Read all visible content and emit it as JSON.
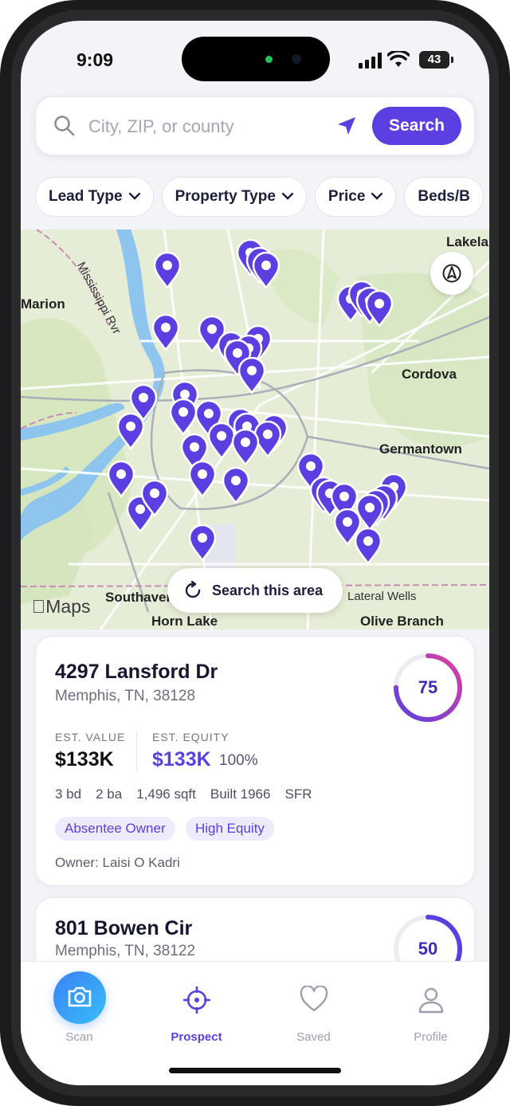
{
  "status_bar": {
    "time": "9:09",
    "battery": "43"
  },
  "search": {
    "placeholder": "City, ZIP, or county",
    "value": "",
    "button_label": "Search"
  },
  "filters": [
    "Lead Type",
    "Property Type",
    "Price",
    "Beds/B"
  ],
  "map": {
    "labels": {
      "lakeland": "Lakela",
      "marion": "Marion",
      "river": "Mississippi Rvr",
      "cordova": "Cordova",
      "germantown": "Germantown",
      "southaven": "Southaven",
      "horn_lake": "Horn Lake",
      "collierville": "Lateral Wells",
      "olive_branch": "Olive Branch"
    },
    "attribution": "Maps",
    "search_area_label": "Search this area",
    "pin_color": "#5b3fe0"
  },
  "properties": [
    {
      "address": "4297 Lansford Dr",
      "city": "Memphis, TN, 38128",
      "score": 75,
      "est_value_label": "EST. VALUE",
      "est_value": "$133K",
      "est_equity_label": "EST. EQUITY",
      "est_equity": "$133K",
      "equity_pct": "100%",
      "specs": [
        "3 bd",
        "2 ba",
        "1,496 sqft",
        "Built 1966",
        "SFR"
      ],
      "tags": [
        "Absentee Owner",
        "High Equity"
      ],
      "owner": "Owner: Laisi O Kadri"
    },
    {
      "address": "801 Bowen Cir",
      "city": "Memphis, TN, 38122",
      "score": 50
    }
  ],
  "tabs": [
    {
      "label": "Scan",
      "icon": "camera-icon"
    },
    {
      "label": "Prospect",
      "icon": "crosshair-icon",
      "active": true
    },
    {
      "label": "Saved",
      "icon": "heart-icon"
    },
    {
      "label": "Profile",
      "icon": "person-icon"
    }
  ],
  "colors": {
    "accent": "#5b3fe0",
    "scan_gradient": "#3b82f6"
  }
}
